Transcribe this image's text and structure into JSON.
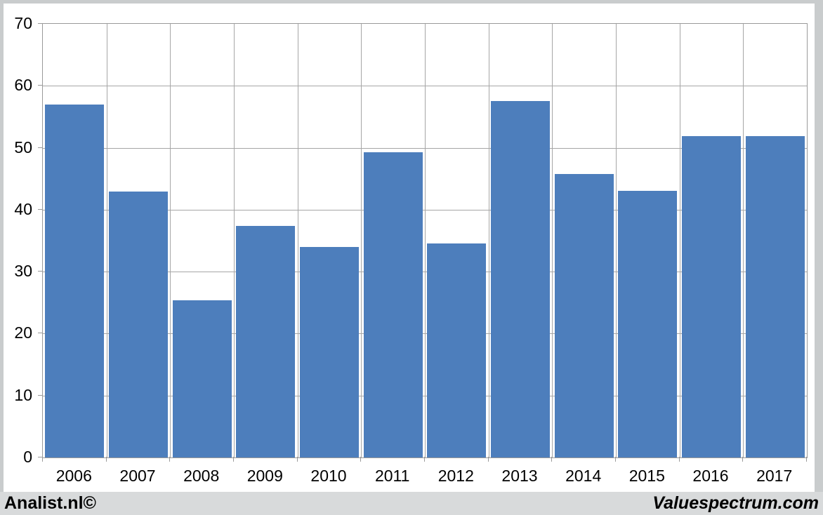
{
  "chart_data": {
    "type": "bar",
    "title": "",
    "xlabel": "",
    "ylabel": "",
    "categories": [
      "2006",
      "2007",
      "2008",
      "2009",
      "2010",
      "2011",
      "2012",
      "2013",
      "2014",
      "2015",
      "2016",
      "2017"
    ],
    "values": [
      57.0,
      42.9,
      25.4,
      37.4,
      34.0,
      49.3,
      34.5,
      57.6,
      45.8,
      43.1,
      51.9,
      51.9
    ],
    "ylim": [
      0,
      70
    ],
    "yticks": [
      0,
      10,
      20,
      30,
      40,
      50,
      60,
      70
    ],
    "grid": true,
    "legend_position": "none",
    "bar_color": "#4d7ebc",
    "gridline_color": "#a6a6a6",
    "axis_color": "#9a9a9a",
    "tick_label_color": "#000000",
    "plot_background": "#ffffff",
    "frame_color": "#c9cccd"
  },
  "footer": {
    "left": "Analist.nl©",
    "right": "Valuespectrum.com",
    "background": "#d8dadb"
  }
}
